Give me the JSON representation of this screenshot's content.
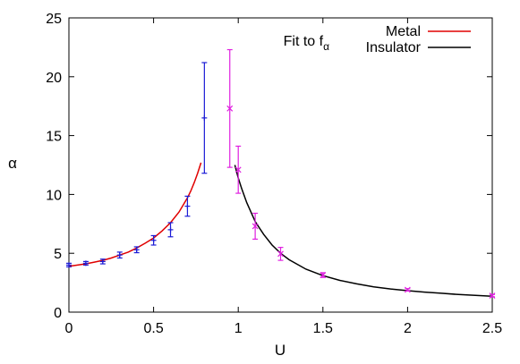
{
  "chart_data": {
    "type": "scatter",
    "xlabel": "U",
    "ylabel": "α",
    "xlim": [
      0,
      2.5
    ],
    "ylim": [
      0,
      25
    ],
    "xticks": [
      "0",
      "0.5",
      "1",
      "1.5",
      "2",
      "2.5"
    ],
    "yticks": [
      "0",
      "5",
      "10",
      "15",
      "20",
      "25"
    ],
    "grid": false,
    "legend_position": "top-right",
    "legend_header": {
      "base": "Fit to f",
      "subscript": "α"
    },
    "fits": [
      {
        "name": "Metal",
        "color": "#e00000",
        "x": [
          0.0,
          0.05,
          0.1,
          0.15,
          0.2,
          0.25,
          0.3,
          0.35,
          0.4,
          0.45,
          0.5,
          0.55,
          0.6,
          0.65,
          0.7,
          0.72,
          0.74,
          0.76,
          0.78
        ],
        "y": [
          3.9,
          4.0,
          4.1,
          4.25,
          4.4,
          4.6,
          4.85,
          5.1,
          5.45,
          5.85,
          6.3,
          6.9,
          7.6,
          8.5,
          9.7,
          10.3,
          11.0,
          11.8,
          12.7
        ]
      },
      {
        "name": "Insulator",
        "color": "#000000",
        "x": [
          0.98,
          1.0,
          1.02,
          1.05,
          1.1,
          1.15,
          1.2,
          1.25,
          1.3,
          1.4,
          1.5,
          1.6,
          1.7,
          1.8,
          1.9,
          2.0,
          2.1,
          2.2,
          2.3,
          2.4,
          2.5
        ],
        "y": [
          12.5,
          11.4,
          10.5,
          9.3,
          7.7,
          6.6,
          5.7,
          5.0,
          4.45,
          3.65,
          3.1,
          2.7,
          2.4,
          2.15,
          1.97,
          1.82,
          1.7,
          1.6,
          1.5,
          1.42,
          1.35
        ]
      }
    ],
    "series": [
      {
        "marker": "plus",
        "color": "#1c1cd6",
        "points": [
          {
            "x": 0.0,
            "y": 4.0,
            "err": 0.15
          },
          {
            "x": 0.1,
            "y": 4.15,
            "err": 0.15
          },
          {
            "x": 0.2,
            "y": 4.3,
            "err": 0.2
          },
          {
            "x": 0.3,
            "y": 4.85,
            "err": 0.25
          },
          {
            "x": 0.4,
            "y": 5.3,
            "err": 0.25
          },
          {
            "x": 0.5,
            "y": 6.1,
            "err": 0.4
          },
          {
            "x": 0.6,
            "y": 7.0,
            "err": 0.6
          },
          {
            "x": 0.7,
            "y": 9.0,
            "err": 0.85
          },
          {
            "x": 0.8,
            "y": 16.5,
            "err": 4.7
          }
        ]
      },
      {
        "marker": "cross",
        "color": "#e020e0",
        "points": [
          {
            "x": 0.95,
            "y": 17.3,
            "err": 5.0
          },
          {
            "x": 1.0,
            "y": 12.1,
            "err": 2.0
          },
          {
            "x": 1.1,
            "y": 7.3,
            "err": 1.1
          },
          {
            "x": 1.25,
            "y": 4.95,
            "err": 0.55
          },
          {
            "x": 1.5,
            "y": 3.15,
            "err": 0.2
          },
          {
            "x": 2.0,
            "y": 1.9,
            "err": 0.1
          },
          {
            "x": 2.5,
            "y": 1.4,
            "err": 0.1
          }
        ]
      }
    ]
  }
}
